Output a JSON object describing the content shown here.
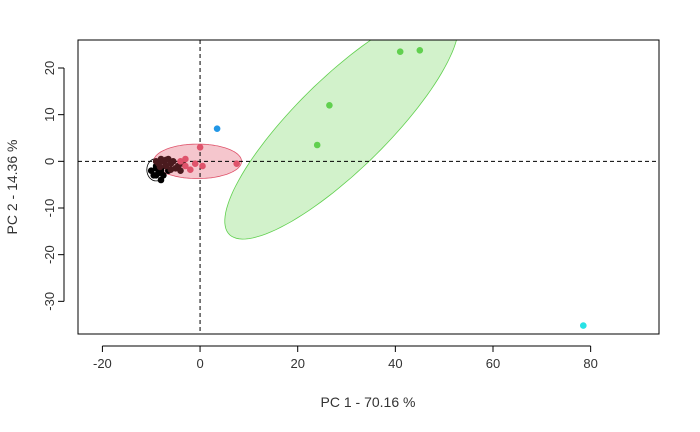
{
  "chart_data": {
    "type": "scatter",
    "title": "",
    "xlabel": "PC 1 - 70.16 %",
    "ylabel": "PC 2 - 14.36 %",
    "xlim": [
      -25,
      94
    ],
    "ylim": [
      -37,
      26
    ],
    "xticks": [
      -20,
      0,
      20,
      40,
      60,
      80
    ],
    "yticks": [
      -30,
      -20,
      -10,
      0,
      10,
      20
    ],
    "grid": false,
    "reference_lines": {
      "x": 0,
      "y": 0,
      "style": "dashed"
    },
    "series": [
      {
        "color": "#000000",
        "points": [
          [
            -10,
            -2
          ],
          [
            -9.5,
            -3
          ],
          [
            -9,
            -1.5
          ],
          [
            -9,
            -3
          ],
          [
            -8.5,
            -2.5
          ],
          [
            -8,
            -4
          ],
          [
            -8,
            -2
          ],
          [
            -7.5,
            -3
          ],
          [
            -7,
            -1
          ],
          [
            -6.5,
            -2
          ],
          [
            -9,
            -1
          ],
          [
            -8,
            -1.5
          ]
        ],
        "ellipse": {
          "cx": -9,
          "cy": -1.8,
          "rx": 1.9,
          "ry": 2.4,
          "angle_deg": 0,
          "fill": "none",
          "stroke": "#000000"
        }
      },
      {
        "color": "#4a1a1e",
        "points": [
          [
            -9,
            0
          ],
          [
            -8.5,
            -0.5
          ],
          [
            -8,
            0.5
          ],
          [
            -7.5,
            0
          ],
          [
            -7,
            -1
          ],
          [
            -6.5,
            0.5
          ],
          [
            -6,
            -0.5
          ],
          [
            -5.5,
            0
          ],
          [
            -5,
            -1.5
          ],
          [
            -4.5,
            -1
          ],
          [
            -4,
            -2
          ],
          [
            -3.5,
            -0.5
          ],
          [
            -7,
            0.3
          ],
          [
            -8.2,
            -1.2
          ],
          [
            -6,
            -1.8
          ]
        ],
        "ellipse": null
      },
      {
        "color": "#df536b",
        "points": [
          [
            -4,
            0
          ],
          [
            -3,
            0.5
          ],
          [
            -2,
            -1.8
          ],
          [
            0,
            3
          ],
          [
            0.5,
            -1
          ],
          [
            7.5,
            -0.5
          ],
          [
            -1,
            -0.5
          ],
          [
            -3,
            -1
          ]
        ],
        "ellipse": {
          "cx": -0.5,
          "cy": 0,
          "rx": 9,
          "ry": 3.7,
          "angle_deg": 0,
          "fill": "#f5c6cd",
          "stroke": "#df536b"
        }
      },
      {
        "color": "#2297e6",
        "points": [
          [
            3.5,
            7
          ]
        ],
        "ellipse": null
      },
      {
        "color": "#61d04f",
        "points": [
          [
            24,
            3.5
          ],
          [
            26.5,
            12
          ],
          [
            41,
            23.5
          ],
          [
            45,
            23.8
          ]
        ],
        "ellipse": {
          "cx": 29,
          "cy": 8,
          "rx": 33,
          "ry": 9.6,
          "angle_deg": 46,
          "fill": "#d2f2cb",
          "stroke": "#61d04f"
        }
      },
      {
        "color": "#28e2e5",
        "points": [
          [
            78.5,
            -35.2
          ]
        ],
        "ellipse": null
      }
    ]
  }
}
